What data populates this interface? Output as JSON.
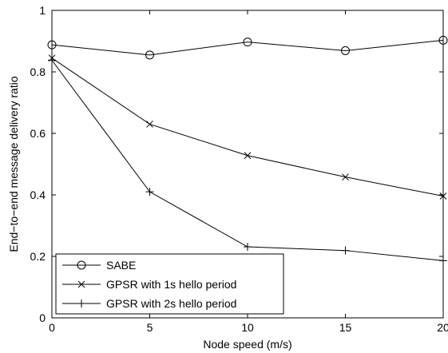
{
  "chart_data": {
    "type": "line",
    "xlabel": "Node speed (m/s)",
    "ylabel": "End−to−end message delivery ratio",
    "xlim": [
      0,
      20
    ],
    "ylim": [
      0,
      1
    ],
    "x_ticks": [
      0,
      5,
      10,
      15,
      20
    ],
    "y_ticks": [
      0,
      0.2,
      0.4,
      0.6,
      0.8,
      1
    ],
    "x_tick_labels": [
      "0",
      "5",
      "10",
      "15",
      "20"
    ],
    "y_tick_labels": [
      "0",
      "0.2",
      "0.4",
      "0.6",
      "0.8",
      "1"
    ],
    "grid": false,
    "legend_position": "bottom-left",
    "x": [
      0,
      5,
      10,
      15,
      20
    ],
    "series": [
      {
        "name": "SABE",
        "marker": "circle",
        "color": "#000000",
        "values": [
          0.888,
          0.855,
          0.897,
          0.869,
          0.903
        ]
      },
      {
        "name": "GPSR with 1s hello period",
        "marker": "x",
        "color": "#000000",
        "values": [
          0.845,
          0.63,
          0.528,
          0.458,
          0.396
        ]
      },
      {
        "name": "GPSR with 2s hello period",
        "marker": "plus",
        "color": "#000000",
        "values": [
          0.838,
          0.41,
          0.231,
          0.219,
          0.186
        ]
      }
    ]
  }
}
